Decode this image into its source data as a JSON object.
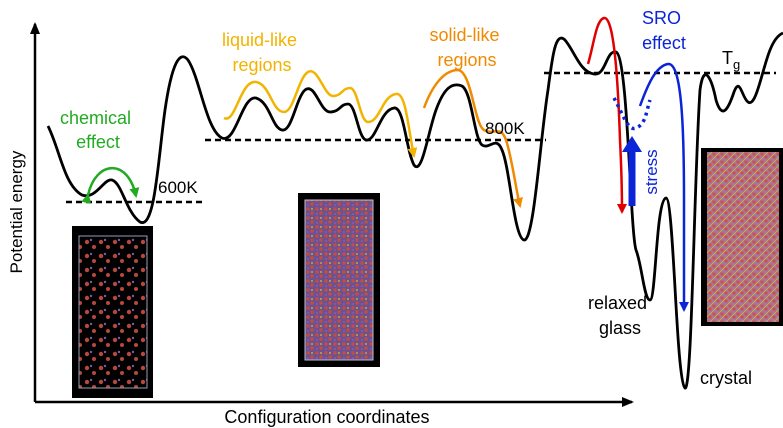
{
  "axes": {
    "ylabel": "Potential energy",
    "xlabel": "Configuration coordinates"
  },
  "labels": {
    "chemical_effect_line1": "chemical",
    "chemical_effect_line2": "effect",
    "liquid_like_line1": "liquid-like",
    "liquid_like_line2": "regions",
    "solid_like_line1": "solid-like",
    "solid_like_line2": "regions",
    "sro_line1": "SRO",
    "sro_line2": "effect",
    "tg_base": "T",
    "tg_sub": "g",
    "temp_600": "600K",
    "temp_800": "800K",
    "stress": "stress",
    "relaxed_line1": "relaxed",
    "relaxed_line2": "glass",
    "crystal": "crystal"
  },
  "colors": {
    "chemical": "#22aa22",
    "liquid": "#f2b400",
    "solid": "#f08a00",
    "red": "#e00000",
    "blue": "#0b24d8",
    "curve": "#000000",
    "panel_bg": "#000000",
    "atom_red": "#d9544a",
    "atom_purple": "#8a6cc8",
    "atom_yellow": "#d4c030"
  }
}
